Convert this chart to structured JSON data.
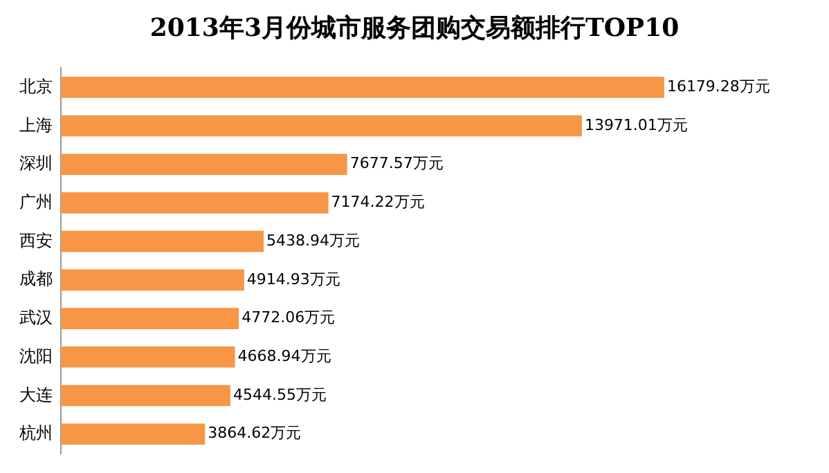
{
  "chart_data": {
    "type": "bar",
    "orientation": "horizontal",
    "title": "2013年3月份城市服务团购交易额排行TOP10",
    "categories": [
      "北京",
      "上海",
      "深圳",
      "广州",
      "西安",
      "成都",
      "武汉",
      "沈阳",
      "大连",
      "杭州"
    ],
    "values": [
      16179.28,
      13971.01,
      7677.57,
      7174.22,
      5438.94,
      4914.93,
      4772.06,
      4668.94,
      4544.55,
      3864.62
    ],
    "value_labels": [
      "16179.28万元",
      "13971.01万元",
      "7677.57万元",
      "7174.22万元",
      "5438.94万元",
      "4914.93万元",
      "4772.06万元",
      "4668.94万元",
      "4544.55万元",
      "3864.62万元"
    ],
    "color": "#f79646",
    "tick_labels": "y",
    "grid": false,
    "legend": false
  }
}
